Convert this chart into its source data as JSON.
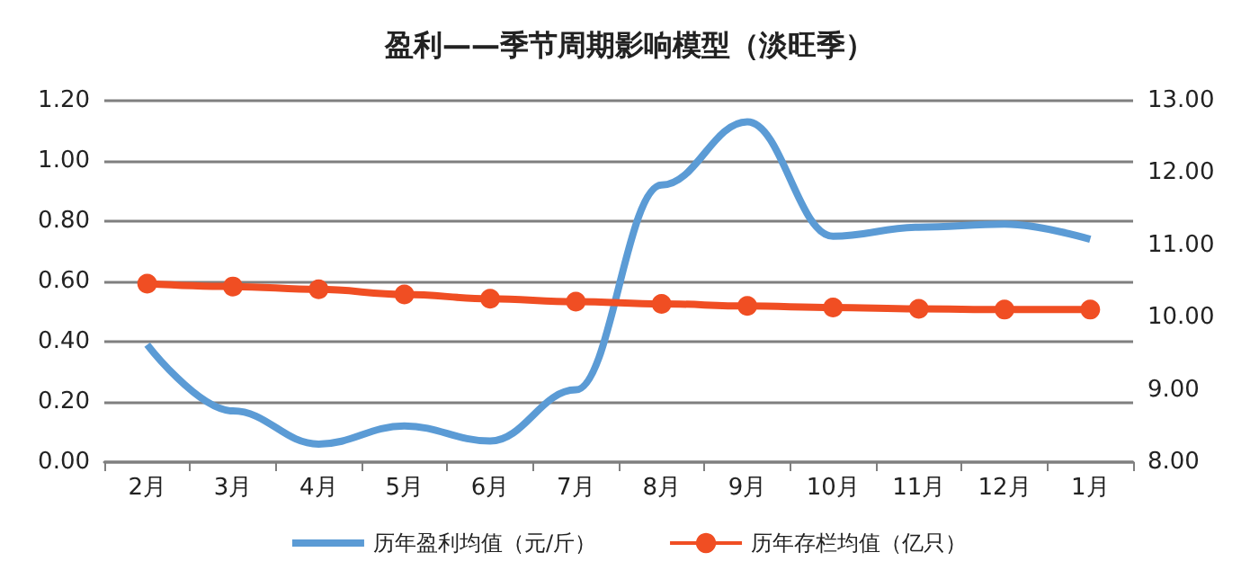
{
  "chart_data": {
    "type": "line",
    "title": "盈利——季节周期影响模型（淡旺季）",
    "categories": [
      "2月",
      "3月",
      "4月",
      "5月",
      "6月",
      "7月",
      "8月",
      "9月",
      "10月",
      "11月",
      "12月",
      "1月"
    ],
    "series": [
      {
        "name": "历年盈利均值（元/斤）",
        "color": "#5b9bd5",
        "marker": "none",
        "values": [
          0.39,
          0.17,
          0.06,
          0.12,
          0.07,
          0.24,
          0.92,
          1.13,
          0.75,
          0.78,
          0.79,
          0.74
        ]
      },
      {
        "name": "历年存栏均值（亿只）",
        "color": "#f04e23",
        "marker": "circle",
        "axis": "y2",
        "values": [
          10.47,
          10.43,
          10.39,
          10.32,
          10.26,
          10.22,
          10.19,
          10.16,
          10.14,
          10.12,
          10.11,
          10.11
        ]
      }
    ],
    "ylim": [
      0,
      1.2
    ],
    "yticks": [
      {
        "value": 0,
        "label": "0.00"
      },
      {
        "value": 0.2,
        "label": "0.20"
      },
      {
        "value": 0.4,
        "label": "0.40"
      },
      {
        "value": 0.6,
        "label": "0.60"
      },
      {
        "value": 0.8,
        "label": "0.80"
      },
      {
        "value": 1.0,
        "label": "1.00"
      },
      {
        "value": 1.2,
        "label": "1.20"
      }
    ],
    "y2lim": [
      8,
      13
    ],
    "y2ticks": [
      {
        "value": 8,
        "label": "8.00"
      },
      {
        "value": 9,
        "label": "9.00"
      },
      {
        "value": 10,
        "label": "10.00"
      },
      {
        "value": 11,
        "label": "11.00"
      },
      {
        "value": 12,
        "label": "12.00"
      },
      {
        "value": 13,
        "label": "13.00"
      }
    ],
    "grid": "y",
    "legend": "bottom"
  }
}
